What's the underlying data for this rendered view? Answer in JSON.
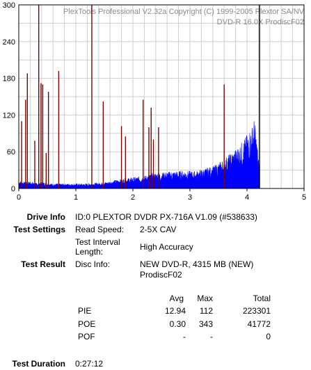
{
  "watermark": {
    "line1": "PlexTools Professional V2.32a Copyright (C) 1999-2005 Plextor SA/NV",
    "line2": "DVD-R   16.0X   ProdiscF02"
  },
  "chart_data": {
    "type": "bar",
    "xlim": [
      0,
      5
    ],
    "ylim": [
      0,
      300
    ],
    "x_ticks": [
      "0",
      "1",
      "2",
      "3",
      "4",
      "5"
    ],
    "y_ticks": [
      "0",
      "60",
      "120",
      "180",
      "240",
      "300"
    ],
    "grid": true,
    "end_marker_x": 4.22,
    "series": [
      {
        "key": "pie",
        "color": "#0000ff",
        "envelope": [
          [
            0.0,
            10
          ],
          [
            0.1,
            8
          ],
          [
            0.2,
            9
          ],
          [
            0.3,
            7
          ],
          [
            0.4,
            8
          ],
          [
            0.5,
            7
          ],
          [
            0.6,
            6
          ],
          [
            0.7,
            6
          ],
          [
            0.8,
            6
          ],
          [
            0.9,
            6
          ],
          [
            1.0,
            6
          ],
          [
            1.1,
            6
          ],
          [
            1.2,
            6
          ],
          [
            1.3,
            7
          ],
          [
            1.4,
            7
          ],
          [
            1.5,
            8
          ],
          [
            1.6,
            9
          ],
          [
            1.7,
            11
          ],
          [
            1.8,
            12
          ],
          [
            1.9,
            13
          ],
          [
            2.0,
            14
          ],
          [
            2.1,
            15
          ],
          [
            2.2,
            16
          ],
          [
            2.3,
            18
          ],
          [
            2.4,
            20
          ],
          [
            2.5,
            20
          ],
          [
            2.6,
            21
          ],
          [
            2.7,
            22
          ],
          [
            2.8,
            22
          ],
          [
            2.9,
            23
          ],
          [
            3.0,
            22
          ],
          [
            3.1,
            22
          ],
          [
            3.2,
            24
          ],
          [
            3.3,
            26
          ],
          [
            3.4,
            28
          ],
          [
            3.5,
            32
          ],
          [
            3.6,
            38
          ],
          [
            3.7,
            44
          ],
          [
            3.8,
            50
          ],
          [
            3.9,
            58
          ],
          [
            4.0,
            68
          ],
          [
            4.05,
            75
          ],
          [
            4.1,
            80
          ],
          [
            4.13,
            90
          ],
          [
            4.16,
            70
          ],
          [
            4.2,
            40
          ],
          [
            4.22,
            30
          ]
        ]
      },
      {
        "key": "poe",
        "color": "#800000",
        "points": [
          [
            0.05,
            110
          ],
          [
            0.12,
            145
          ],
          [
            0.15,
            188
          ],
          [
            0.28,
            78
          ],
          [
            0.35,
            300
          ],
          [
            0.39,
            172
          ],
          [
            0.42,
            170
          ],
          [
            0.48,
            58
          ],
          [
            0.52,
            158
          ],
          [
            0.7,
            192
          ],
          [
            1.28,
            300
          ],
          [
            1.48,
            142
          ],
          [
            1.8,
            102
          ],
          [
            1.87,
            85
          ],
          [
            2.18,
            145
          ],
          [
            2.28,
            100
          ],
          [
            2.32,
            132
          ],
          [
            2.36,
            80
          ],
          [
            2.45,
            100
          ],
          [
            3.6,
            170
          ]
        ]
      }
    ]
  },
  "info": {
    "drive_label": "Drive Info",
    "drive_value": "ID:0 PLEXTOR DVDR PX-716A V1.09 (#538633)",
    "settings_label": "Test Settings",
    "read_speed_label": "Read Speed:",
    "read_speed_value": "2-5X CAV",
    "interval_label_1": "Test Interval",
    "interval_label_2": "Length:",
    "interval_value": "High Accuracy",
    "result_label": "Test Result",
    "disc_info_label": "Disc Info:",
    "disc_info_value_1": "NEW DVD-R, 4315 MB (NEW)",
    "disc_info_value_2": "ProdiscF02",
    "duration_label": "Test Duration",
    "duration_value": "0:27:12"
  },
  "stats": {
    "headers": {
      "avg": "Avg",
      "max": "Max",
      "total": "Total"
    },
    "rows": [
      {
        "name": "PIE",
        "avg": "12.94",
        "max": "112",
        "total": "223301"
      },
      {
        "name": "POE",
        "avg": "0.30",
        "max": "343",
        "total": "41772"
      },
      {
        "name": "POF",
        "avg": "-",
        "max": "-",
        "total": "0"
      }
    ]
  }
}
